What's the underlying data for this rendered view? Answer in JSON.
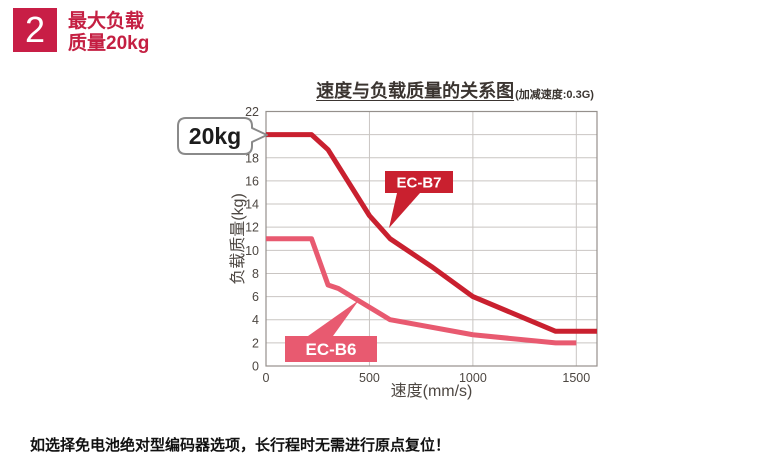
{
  "badge": {
    "number": "2",
    "color": "#c81e46"
  },
  "heading": {
    "line1": "最大负载",
    "line2": "质量20kg",
    "color": "#c41f42"
  },
  "callout": {
    "label": "20kg"
  },
  "chart_data": {
    "type": "line",
    "title": "速度与负载质量的关系图",
    "title_suffix": "(加减速度:0.3G)",
    "xlabel": "速度(mm/s)",
    "ylabel": "负载质量(kg)",
    "xlim": [
      0,
      1600
    ],
    "ylim": [
      0,
      22
    ],
    "xticks": [
      0,
      500,
      1000,
      1500
    ],
    "ytick_step": 2,
    "grid": true,
    "grid_color": "#c9c5c2",
    "border_color": "#95908c",
    "legend_position": "annotated-on-lines",
    "series": [
      {
        "name": "EC-B7",
        "color": "#c9202f",
        "points": [
          [
            0,
            20
          ],
          [
            220,
            20
          ],
          [
            300,
            18.7
          ],
          [
            500,
            13
          ],
          [
            600,
            11
          ],
          [
            800,
            8.6
          ],
          [
            1000,
            6
          ],
          [
            1400,
            3
          ],
          [
            1600,
            3
          ]
        ]
      },
      {
        "name": "EC-B6",
        "color": "#e85a70",
        "points": [
          [
            0,
            11
          ],
          [
            220,
            11
          ],
          [
            300,
            7
          ],
          [
            350,
            6.7
          ],
          [
            600,
            4
          ],
          [
            1000,
            2.7
          ],
          [
            1400,
            2
          ],
          [
            1500,
            2
          ]
        ]
      }
    ],
    "annotations": [
      {
        "text": "20kg",
        "target": "EC-B7 curve start at 20 kg"
      },
      {
        "text": "EC-B7",
        "target": "dark red curve"
      },
      {
        "text": "EC-B6",
        "target": "pink curve"
      }
    ]
  },
  "footnote": "如选择免电池绝对型编码器选项，长行程时无需进行原点复位！"
}
